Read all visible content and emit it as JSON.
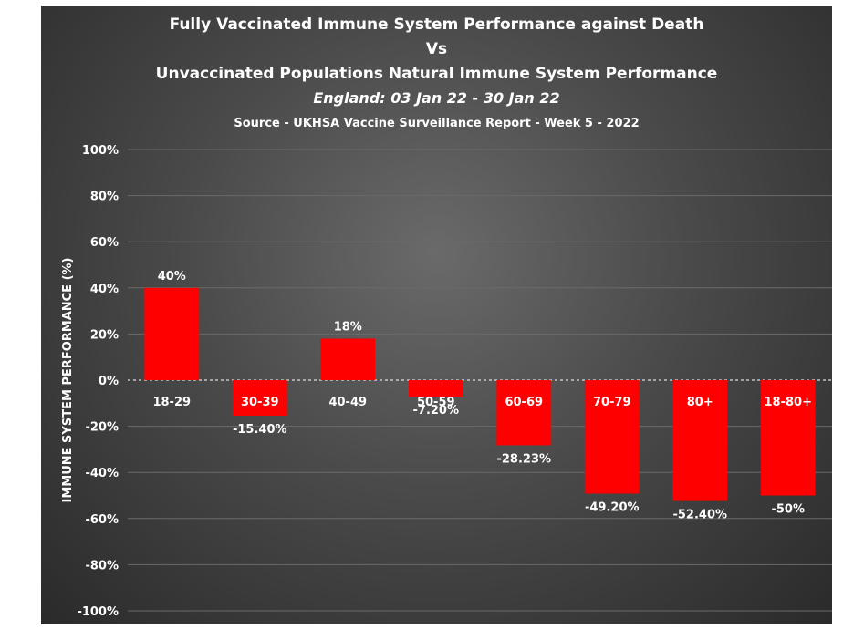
{
  "chart_data": {
    "type": "bar",
    "title_lines": [
      "Fully Vaccinated Immune System Performance against Death",
      "Vs",
      "Unvaccinated Populations Natural Immune System Performance",
      "England:  03 Jan 22 - 30 Jan 22",
      "Source - UKHSA Vaccine Surveillance Report - Week 5 - 2022"
    ],
    "ylabel": "IMMUNE SYSTEM PERFORMANCE  (%)",
    "xlabel": "",
    "ylim": [
      -100,
      100
    ],
    "y_ticks": [
      100,
      80,
      60,
      40,
      20,
      0,
      -20,
      -40,
      -60,
      -80,
      -100
    ],
    "y_tick_labels": [
      "100%",
      "80%",
      "60%",
      "40%",
      "20%",
      "0%",
      "-20%",
      "-40%",
      "-60%",
      "-80%",
      "-100%"
    ],
    "categories": [
      "18-29",
      "30-39",
      "40-49",
      "50-59",
      "60-69",
      "70-79",
      "80+",
      "18-80+"
    ],
    "values": [
      40,
      -15.4,
      18,
      -7.2,
      -28.23,
      -49.2,
      -52.4,
      -50
    ],
    "value_labels": [
      "40%",
      "-15.40%",
      "18%",
      "-7.20%",
      "-28.23%",
      "-49.20%",
      "-52.40%",
      "-50%"
    ],
    "bar_color": "#ff0000",
    "gridlines": true,
    "legend": "none"
  }
}
